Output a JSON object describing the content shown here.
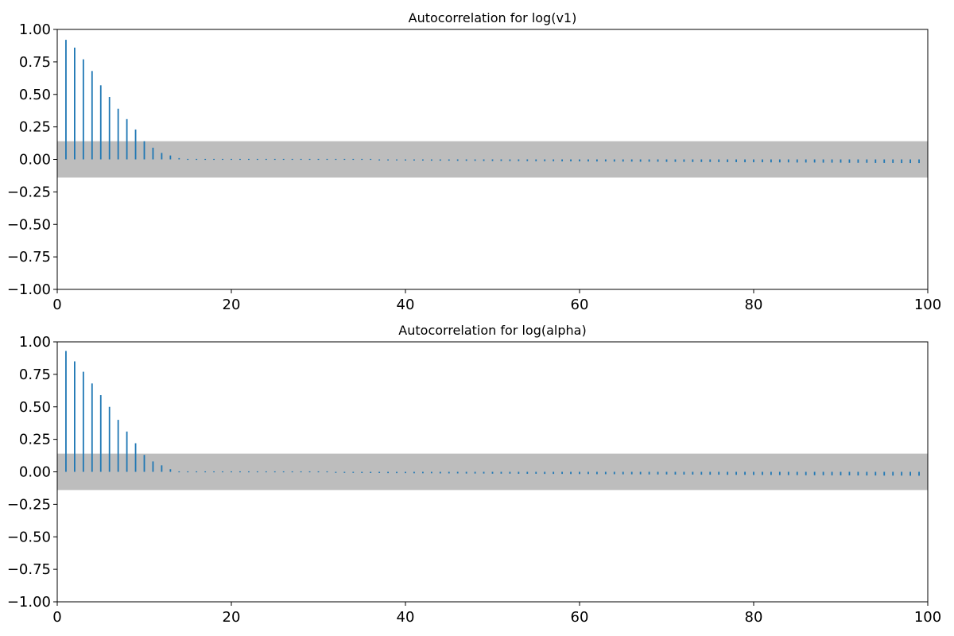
{
  "chart_data": [
    {
      "type": "bar",
      "title": "Autocorrelation for log(v1)",
      "xlabel": "",
      "ylabel": "",
      "xlim": [
        0,
        100
      ],
      "ylim": [
        -1.0,
        1.0
      ],
      "xticks": [
        "0",
        "20",
        "40",
        "60",
        "80",
        "100"
      ],
      "yticks": [
        "−1.00",
        "−0.75",
        "−0.50",
        "−0.25",
        "0.00",
        "0.25",
        "0.50",
        "0.75",
        "1.00"
      ],
      "confidence_band": [
        -0.14,
        0.14
      ],
      "grid": false,
      "series": [
        {
          "x": [
            1,
            2,
            3,
            4,
            5,
            6,
            7,
            8,
            9,
            10,
            11,
            12,
            13,
            14,
            15,
            16,
            17,
            18,
            19,
            20,
            21,
            22,
            23,
            24,
            25,
            26,
            27,
            28,
            29,
            30,
            31,
            32,
            33,
            34,
            35,
            36,
            37,
            38,
            39,
            40,
            41,
            42,
            43,
            44,
            45,
            46,
            47,
            48,
            49,
            50,
            51,
            52,
            53,
            54,
            55,
            56,
            57,
            58,
            59,
            60,
            61,
            62,
            63,
            64,
            65,
            66,
            67,
            68,
            69,
            70,
            71,
            72,
            73,
            74,
            75,
            76,
            77,
            78,
            79,
            80,
            81,
            82,
            83,
            84,
            85,
            86,
            87,
            88,
            89,
            90,
            91,
            92,
            93,
            94,
            95,
            96,
            97,
            98,
            99
          ],
          "values": [
            0.92,
            0.86,
            0.77,
            0.68,
            0.57,
            0.48,
            0.39,
            0.31,
            0.23,
            0.14,
            0.09,
            0.05,
            0.03,
            0.01,
            0.002,
            0.0,
            0.0,
            0.0,
            0.0,
            -0.001,
            -0.002,
            -0.002,
            -0.003,
            -0.003,
            -0.004,
            -0.004,
            -0.004,
            -0.005,
            -0.005,
            -0.005,
            -0.006,
            -0.006,
            -0.006,
            -0.007,
            -0.007,
            -0.007,
            -0.008,
            -0.008,
            -0.008,
            -0.009,
            -0.009,
            -0.009,
            -0.01,
            -0.01,
            -0.01,
            -0.011,
            -0.011,
            -0.011,
            -0.012,
            -0.012,
            -0.012,
            -0.013,
            -0.013,
            -0.013,
            -0.014,
            -0.014,
            -0.014,
            -0.015,
            -0.015,
            -0.015,
            -0.016,
            -0.016,
            -0.016,
            -0.017,
            -0.017,
            -0.017,
            -0.018,
            -0.018,
            -0.018,
            -0.019,
            -0.019,
            -0.019,
            -0.02,
            -0.02,
            -0.02,
            -0.021,
            -0.021,
            -0.021,
            -0.022,
            -0.022,
            -0.022,
            -0.023,
            -0.023,
            -0.023,
            -0.024,
            -0.024,
            -0.024,
            -0.025,
            -0.025,
            -0.025,
            -0.026,
            -0.026,
            -0.026,
            -0.027,
            -0.027,
            -0.027,
            -0.028,
            -0.028,
            -0.028
          ]
        }
      ]
    },
    {
      "type": "bar",
      "title": "Autocorrelation for log(alpha)",
      "xlabel": "",
      "ylabel": "",
      "xlim": [
        0,
        100
      ],
      "ylim": [
        -1.0,
        1.0
      ],
      "xticks": [
        "0",
        "20",
        "40",
        "60",
        "80",
        "100"
      ],
      "yticks": [
        "−1.00",
        "−0.75",
        "−0.50",
        "−0.25",
        "0.00",
        "0.25",
        "0.50",
        "0.75",
        "1.00"
      ],
      "confidence_band": [
        -0.14,
        0.14
      ],
      "grid": false,
      "series": [
        {
          "x": [
            1,
            2,
            3,
            4,
            5,
            6,
            7,
            8,
            9,
            10,
            11,
            12,
            13,
            14,
            15,
            16,
            17,
            18,
            19,
            20,
            21,
            22,
            23,
            24,
            25,
            26,
            27,
            28,
            29,
            30,
            31,
            32,
            33,
            34,
            35,
            36,
            37,
            38,
            39,
            40,
            41,
            42,
            43,
            44,
            45,
            46,
            47,
            48,
            49,
            50,
            51,
            52,
            53,
            54,
            55,
            56,
            57,
            58,
            59,
            60,
            61,
            62,
            63,
            64,
            65,
            66,
            67,
            68,
            69,
            70,
            71,
            72,
            73,
            74,
            75,
            76,
            77,
            78,
            79,
            80,
            81,
            82,
            83,
            84,
            85,
            86,
            87,
            88,
            89,
            90,
            91,
            92,
            93,
            94,
            95,
            96,
            97,
            98,
            99
          ],
          "values": [
            0.93,
            0.85,
            0.77,
            0.68,
            0.59,
            0.5,
            0.4,
            0.31,
            0.22,
            0.13,
            0.08,
            0.05,
            0.02,
            0.001,
            -0.001,
            -0.002,
            -0.002,
            -0.003,
            -0.003,
            -0.004,
            -0.004,
            -0.004,
            -0.005,
            -0.005,
            -0.005,
            -0.006,
            -0.006,
            -0.006,
            -0.007,
            -0.007,
            -0.007,
            -0.008,
            -0.008,
            -0.008,
            -0.009,
            -0.009,
            -0.009,
            -0.01,
            -0.01,
            -0.01,
            -0.011,
            -0.011,
            -0.011,
            -0.012,
            -0.012,
            -0.012,
            -0.013,
            -0.013,
            -0.013,
            -0.014,
            -0.014,
            -0.014,
            -0.015,
            -0.015,
            -0.015,
            -0.016,
            -0.016,
            -0.016,
            -0.017,
            -0.017,
            -0.017,
            -0.018,
            -0.018,
            -0.018,
            -0.019,
            -0.019,
            -0.019,
            -0.02,
            -0.02,
            -0.02,
            -0.021,
            -0.021,
            -0.021,
            -0.022,
            -0.022,
            -0.022,
            -0.023,
            -0.023,
            -0.023,
            -0.024,
            -0.024,
            -0.024,
            -0.025,
            -0.025,
            -0.025,
            -0.026,
            -0.026,
            -0.026,
            -0.027,
            -0.027,
            -0.027,
            -0.028,
            -0.028,
            -0.028,
            -0.029,
            -0.029,
            -0.029,
            -0.03,
            -0.03
          ]
        }
      ]
    }
  ],
  "colors": {
    "stem": "#1f77b4",
    "band": "#bdbdbd",
    "axis": "#000000",
    "background": "#ffffff"
  }
}
